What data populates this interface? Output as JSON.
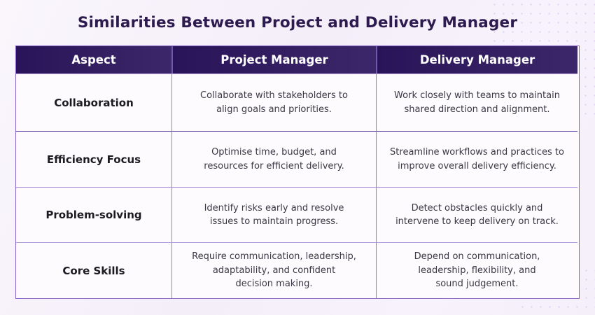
{
  "title": "Similarities Between Project and Delivery Manager",
  "colors": {
    "header_bg": "#2e1760",
    "header_text": "#ffffff",
    "title_text": "#2d1a4e",
    "table_border": "#8a63c9",
    "page_bg": "#f6f1fa"
  },
  "table": {
    "headers": [
      "Aspect",
      "Project Manager",
      "Delivery Manager"
    ],
    "rows": [
      {
        "aspect": "Collaboration",
        "project_manager": "Collaborate with stakeholders to\nalign goals and priorities.",
        "delivery_manager": "Work closely with teams to maintain\nshared direction and alignment."
      },
      {
        "aspect": "Efficiency Focus",
        "project_manager": "Optimise time, budget, and\nresources for efficient delivery.",
        "delivery_manager": "Streamline workflows and practices to\nimprove overall delivery efficiency."
      },
      {
        "aspect": "Problem-solving",
        "project_manager": "Identify risks early and resolve\nissues to maintain progress.",
        "delivery_manager": "Detect obstacles quickly and\nintervene to keep delivery on track."
      },
      {
        "aspect": "Core Skills",
        "project_manager": "Require communication, leadership,\nadaptability, and confident\ndecision making.",
        "delivery_manager": "Depend on communication,\nleadership, flexibility, and\nsound judgement."
      }
    ]
  },
  "chart_data": {
    "type": "table",
    "title": "Similarities Between Project and Delivery Manager",
    "columns": [
      "Aspect",
      "Project Manager",
      "Delivery Manager"
    ],
    "rows": [
      [
        "Collaboration",
        "Collaborate with stakeholders to align goals and priorities.",
        "Work closely with teams to maintain shared direction and alignment."
      ],
      [
        "Efficiency Focus",
        "Optimise time, budget, and resources for efficient delivery.",
        "Streamline workflows and practices to improve overall delivery efficiency."
      ],
      [
        "Problem-solving",
        "Identify risks early and resolve issues to maintain progress.",
        "Detect obstacles quickly and intervene to keep delivery on track."
      ],
      [
        "Core Skills",
        "Require communication, leadership, adaptability, and confident decision making.",
        "Depend on communication, leadership, flexibility, and sound judgement."
      ]
    ]
  }
}
